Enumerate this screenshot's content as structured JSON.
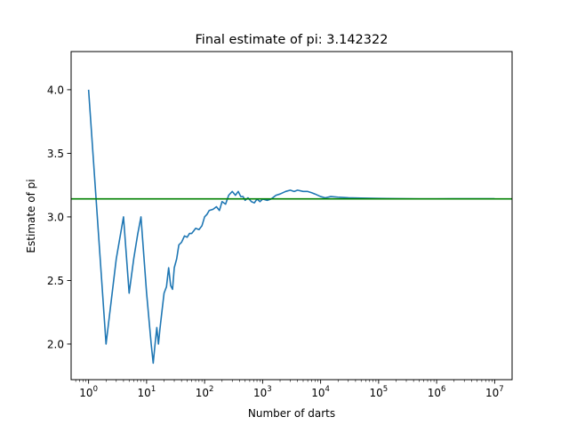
{
  "chart_data": {
    "type": "line",
    "title": "Final estimate of pi: 3.142322",
    "xlabel": "Number of darts",
    "ylabel": "Estimate of pi",
    "xscale": "log",
    "xlim": [
      0.5,
      20000000
    ],
    "ylim": [
      1.72,
      4.3
    ],
    "grid": false,
    "x_ticks": [
      {
        "base": "10",
        "exp": "0",
        "value": 1
      },
      {
        "base": "10",
        "exp": "1",
        "value": 10
      },
      {
        "base": "10",
        "exp": "2",
        "value": 100
      },
      {
        "base": "10",
        "exp": "3",
        "value": 1000
      },
      {
        "base": "10",
        "exp": "4",
        "value": 10000
      },
      {
        "base": "10",
        "exp": "5",
        "value": 100000
      },
      {
        "base": "10",
        "exp": "6",
        "value": 1000000
      },
      {
        "base": "10",
        "exp": "7",
        "value": 10000000
      }
    ],
    "y_ticks": [
      {
        "label": "2.0",
        "value": 2.0
      },
      {
        "label": "2.5",
        "value": 2.5
      },
      {
        "label": "3.0",
        "value": 3.0
      },
      {
        "label": "3.5",
        "value": 3.5
      },
      {
        "label": "4.0",
        "value": 4.0
      }
    ],
    "series": [
      {
        "color": "#1f77b4",
        "x": [
          1,
          2,
          3,
          4,
          5,
          6,
          7,
          8,
          10,
          12,
          13,
          14,
          15,
          16,
          17,
          18,
          20,
          22,
          24,
          26,
          28,
          30,
          33,
          36,
          40,
          45,
          50,
          55,
          60,
          65,
          70,
          80,
          90,
          100,
          110,
          120,
          140,
          160,
          180,
          200,
          230,
          260,
          300,
          340,
          380,
          420,
          460,
          500,
          560,
          640,
          720,
          800,
          900,
          1000,
          1200,
          1400,
          1700,
          2000,
          2500,
          3000,
          3500,
          4000,
          5000,
          6000,
          7000,
          8000,
          10000,
          12000,
          15000,
          20000,
          30000,
          50000,
          100000,
          200000,
          500000,
          1000000,
          3000000,
          10000000
        ],
        "y": [
          4.0,
          2.0,
          2.67,
          3.0,
          2.4,
          2.67,
          2.86,
          3.0,
          2.4,
          2.0,
          1.85,
          2.0,
          2.13,
          2.0,
          2.12,
          2.22,
          2.4,
          2.45,
          2.6,
          2.46,
          2.43,
          2.6,
          2.67,
          2.78,
          2.8,
          2.85,
          2.84,
          2.87,
          2.87,
          2.89,
          2.91,
          2.9,
          2.93,
          3.0,
          3.02,
          3.05,
          3.06,
          3.08,
          3.05,
          3.12,
          3.1,
          3.17,
          3.2,
          3.17,
          3.2,
          3.16,
          3.16,
          3.13,
          3.15,
          3.12,
          3.11,
          3.14,
          3.12,
          3.14,
          3.13,
          3.14,
          3.17,
          3.18,
          3.2,
          3.21,
          3.2,
          3.21,
          3.2,
          3.2,
          3.19,
          3.18,
          3.16,
          3.15,
          3.16,
          3.155,
          3.15,
          3.148,
          3.145,
          3.143,
          3.142,
          3.142,
          3.1424,
          3.142322
        ]
      },
      {
        "color": "#008000",
        "type": "hline",
        "y": 3.14159
      }
    ]
  }
}
